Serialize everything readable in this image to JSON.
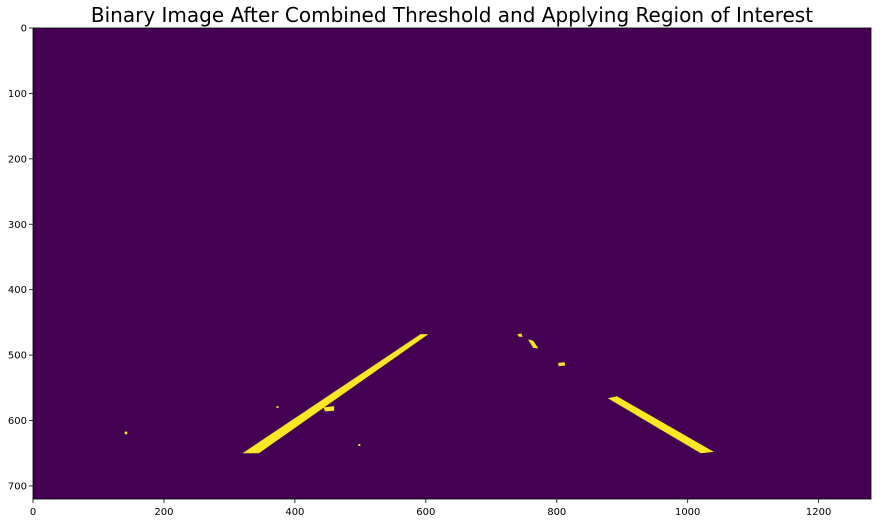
{
  "chart_data": {
    "type": "heatmap",
    "title": "Binary Image After Combined Threshold and Applying Region of Interest",
    "xlabel": "",
    "ylabel": "",
    "image_width": 1280,
    "image_height": 720,
    "xlim": [
      0,
      1280
    ],
    "ylim": [
      720,
      0
    ],
    "x_ticks": [
      0,
      200,
      400,
      600,
      800,
      1000,
      1200
    ],
    "y_ticks": [
      0,
      100,
      200,
      300,
      400,
      500,
      600,
      700
    ],
    "x_tick_labels": [
      "0",
      "200",
      "400",
      "600",
      "800",
      "1000",
      "1200"
    ],
    "y_tick_labels": [
      "0",
      "100",
      "200",
      "300",
      "400",
      "500",
      "600",
      "700"
    ],
    "grid": false,
    "colormap": "viridis",
    "background_value": 0,
    "foreground_value": 1,
    "colors": {
      "background": "#440154",
      "foreground": "#fde725"
    },
    "regions": [
      {
        "name": "left-lane-line",
        "polygon": [
          [
            320,
            650
          ],
          [
            345,
            650
          ],
          [
            604,
            468
          ],
          [
            592,
            468
          ]
        ]
      },
      {
        "name": "right-lane-line",
        "polygon": [
          [
            878,
            566
          ],
          [
            892,
            563
          ],
          [
            1040,
            648
          ],
          [
            1020,
            650
          ]
        ]
      },
      {
        "name": "speck-1",
        "polygon": [
          [
            740,
            468
          ],
          [
            746,
            467
          ],
          [
            748,
            472
          ],
          [
            742,
            472
          ]
        ]
      },
      {
        "name": "speck-2",
        "polygon": [
          [
            756,
            476
          ],
          [
            764,
            478
          ],
          [
            772,
            490
          ],
          [
            764,
            489
          ]
        ]
      },
      {
        "name": "speck-3",
        "polygon": [
          [
            802,
            512
          ],
          [
            812,
            511
          ],
          [
            813,
            516
          ],
          [
            803,
            517
          ]
        ]
      },
      {
        "name": "speck-4",
        "polygon": [
          [
            444,
            580
          ],
          [
            460,
            578
          ],
          [
            460,
            585
          ],
          [
            446,
            586
          ]
        ]
      },
      {
        "name": "speck-5",
        "polygon": [
          [
            140,
            617
          ],
          [
            144,
            617
          ],
          [
            144,
            621
          ],
          [
            140,
            621
          ]
        ]
      },
      {
        "name": "speck-6",
        "polygon": [
          [
            372,
            578
          ],
          [
            375,
            578
          ],
          [
            375,
            581
          ],
          [
            372,
            581
          ]
        ]
      },
      {
        "name": "speck-7",
        "polygon": [
          [
            497,
            636
          ],
          [
            500,
            636
          ],
          [
            500,
            639
          ],
          [
            497,
            639
          ]
        ]
      }
    ]
  }
}
